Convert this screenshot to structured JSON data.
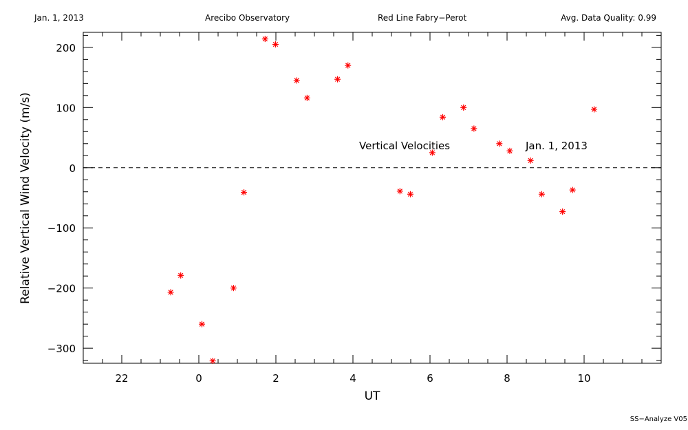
{
  "header": {
    "date": "Jan. 1, 2013",
    "site": "Arecibo Observatory",
    "instrument": "Red Line Fabry−Perot",
    "quality": "Avg. Data Quality: 0.99"
  },
  "footer": {
    "version": "SS−Analyze V05"
  },
  "chart_data": {
    "type": "scatter",
    "xlabel": "UT",
    "ylabel": "Relative Vertical Wind Velocity (m/s)",
    "xlim": [
      -3,
      12
    ],
    "ylim": [
      -325,
      225
    ],
    "x_ticks": [
      22,
      0,
      2,
      4,
      6,
      8,
      10
    ],
    "x_tick_positions": [
      -2,
      0,
      2,
      4,
      6,
      8,
      10
    ],
    "y_ticks": [
      200,
      100,
      0,
      -100,
      -200,
      -300
    ],
    "y_tick_labels": [
      "200",
      "100",
      "0",
      "−100",
      "−200",
      "−300"
    ],
    "reference_line": 0,
    "grid": false,
    "marker": "asterisk",
    "marker_color": "#ff0000",
    "annotations": [
      "Vertical Velocities",
      "Jan. 1, 2013"
    ],
    "points": [
      {
        "x": -0.73,
        "y": -207
      },
      {
        "x": -0.47,
        "y": -179
      },
      {
        "x": 0.08,
        "y": -260
      },
      {
        "x": 0.36,
        "y": -321
      },
      {
        "x": 0.9,
        "y": -200
      },
      {
        "x": 1.17,
        "y": -41
      },
      {
        "x": 1.72,
        "y": 214
      },
      {
        "x": 1.99,
        "y": 205
      },
      {
        "x": 2.54,
        "y": 145
      },
      {
        "x": 2.81,
        "y": 116
      },
      {
        "x": 3.6,
        "y": 147
      },
      {
        "x": 3.87,
        "y": 170
      },
      {
        "x": 5.22,
        "y": -39
      },
      {
        "x": 5.49,
        "y": -44
      },
      {
        "x": 6.06,
        "y": 25
      },
      {
        "x": 6.33,
        "y": 84
      },
      {
        "x": 6.87,
        "y": 100
      },
      {
        "x": 7.14,
        "y": 65
      },
      {
        "x": 7.8,
        "y": 40
      },
      {
        "x": 8.07,
        "y": 28
      },
      {
        "x": 8.61,
        "y": 12
      },
      {
        "x": 8.9,
        "y": -44
      },
      {
        "x": 9.44,
        "y": -73
      },
      {
        "x": 9.7,
        "y": -37
      },
      {
        "x": 10.26,
        "y": 97
      }
    ]
  }
}
